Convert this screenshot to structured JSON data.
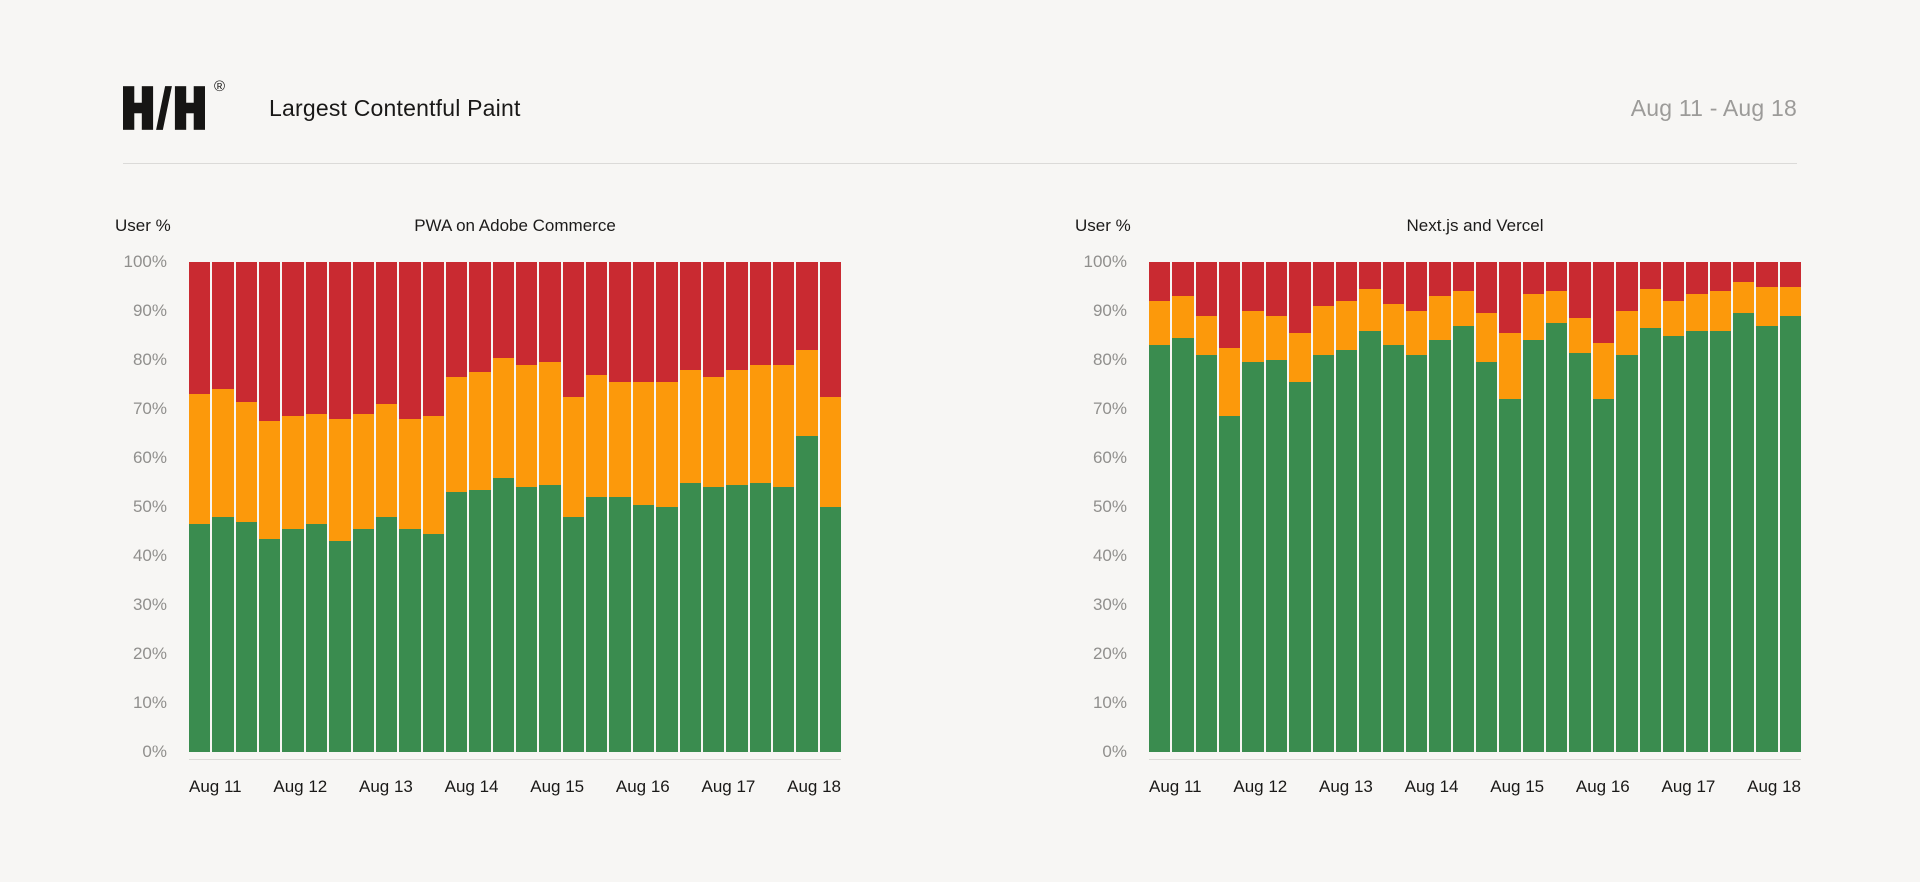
{
  "header": {
    "logo": "H/H",
    "registered_mark": "®",
    "title": "Largest Contentful Paint",
    "date_range": "Aug 11 - Aug 18"
  },
  "colors": {
    "background": "#f7f6f4",
    "divider": "#dbdad8",
    "green": "#3a8c4f",
    "orange": "#fc990b",
    "red": "#c92a31",
    "axis_tick_text": "#908f8d",
    "text": "#1a1918",
    "date_text": "#9c9b99"
  },
  "chart_data": [
    {
      "type": "bar",
      "stacked": true,
      "title": "PWA on Adobe Commerce",
      "ylabel": "User %",
      "xlabel": "",
      "ylim": [
        0,
        100
      ],
      "grid": false,
      "legend": "none",
      "y_tick_labels": [
        "100%",
        "90%",
        "80%",
        "70%",
        "60%",
        "50%",
        "40%",
        "30%",
        "20%",
        "10%",
        "0%"
      ],
      "x_tick_labels": [
        "Aug 11",
        "Aug 12",
        "Aug 13",
        "Aug 14",
        "Aug 15",
        "Aug 16",
        "Aug 17",
        "Aug 18"
      ],
      "series": [
        {
          "name": "green",
          "color": "#3a8c4f",
          "values": [
            46.5,
            48,
            47,
            43.5,
            45.5,
            46.5,
            43,
            45.5,
            48,
            45.5,
            44.5,
            53,
            53.5,
            56,
            54,
            54.5,
            48,
            52,
            52,
            50.5,
            50,
            55,
            54,
            54.5,
            55,
            54,
            64.5,
            50
          ]
        },
        {
          "name": "orange",
          "color": "#fc990b",
          "values": [
            26.5,
            26,
            24.5,
            24,
            23,
            22.5,
            25,
            23.5,
            23,
            22.5,
            24,
            23.5,
            24,
            24.5,
            25,
            25,
            24.5,
            25,
            23.5,
            25,
            25.5,
            23,
            22.5,
            23.5,
            24,
            25,
            17.5,
            22.5
          ]
        },
        {
          "name": "red",
          "color": "#c92a31",
          "values": [
            27,
            26,
            28.5,
            32.5,
            31.5,
            31,
            32,
            31,
            29,
            32,
            31.5,
            23.5,
            22.5,
            19.5,
            21,
            20.5,
            27.5,
            23,
            24.5,
            24.5,
            24.5,
            22,
            23.5,
            22,
            21,
            21,
            18,
            27.5
          ]
        }
      ]
    },
    {
      "type": "bar",
      "stacked": true,
      "title": "Next.js and Vercel",
      "ylabel": "User %",
      "xlabel": "",
      "ylim": [
        0,
        100
      ],
      "grid": false,
      "legend": "none",
      "y_tick_labels": [
        "100%",
        "90%",
        "80%",
        "70%",
        "60%",
        "50%",
        "40%",
        "30%",
        "20%",
        "10%",
        "0%"
      ],
      "x_tick_labels": [
        "Aug 11",
        "Aug 12",
        "Aug 13",
        "Aug 14",
        "Aug 15",
        "Aug 16",
        "Aug 17",
        "Aug 18"
      ],
      "series": [
        {
          "name": "green",
          "color": "#3a8c4f",
          "values": [
            83,
            84.5,
            81,
            68.5,
            79.5,
            80,
            75.5,
            81,
            82,
            86,
            83,
            81,
            84,
            87,
            79.5,
            72,
            84,
            87.5,
            81.5,
            72,
            81,
            86.5,
            85,
            86,
            86,
            89.5,
            87,
            89
          ]
        },
        {
          "name": "orange",
          "color": "#fc990b",
          "values": [
            9,
            8.5,
            8,
            14,
            10.5,
            9,
            10,
            10,
            10,
            8.5,
            8.5,
            9,
            9,
            7,
            10,
            13.5,
            9.5,
            6.5,
            7,
            11.5,
            9,
            8,
            7,
            7.5,
            8,
            6.5,
            8,
            6
          ]
        },
        {
          "name": "red",
          "color": "#c92a31",
          "values": [
            8,
            7,
            11,
            17.5,
            10,
            11,
            14.5,
            9,
            8,
            5.5,
            8.5,
            10,
            7,
            6,
            10.5,
            14.5,
            6.5,
            6,
            11.5,
            16.5,
            10,
            5.5,
            8,
            6.5,
            6,
            4,
            5,
            5
          ]
        }
      ]
    }
  ]
}
